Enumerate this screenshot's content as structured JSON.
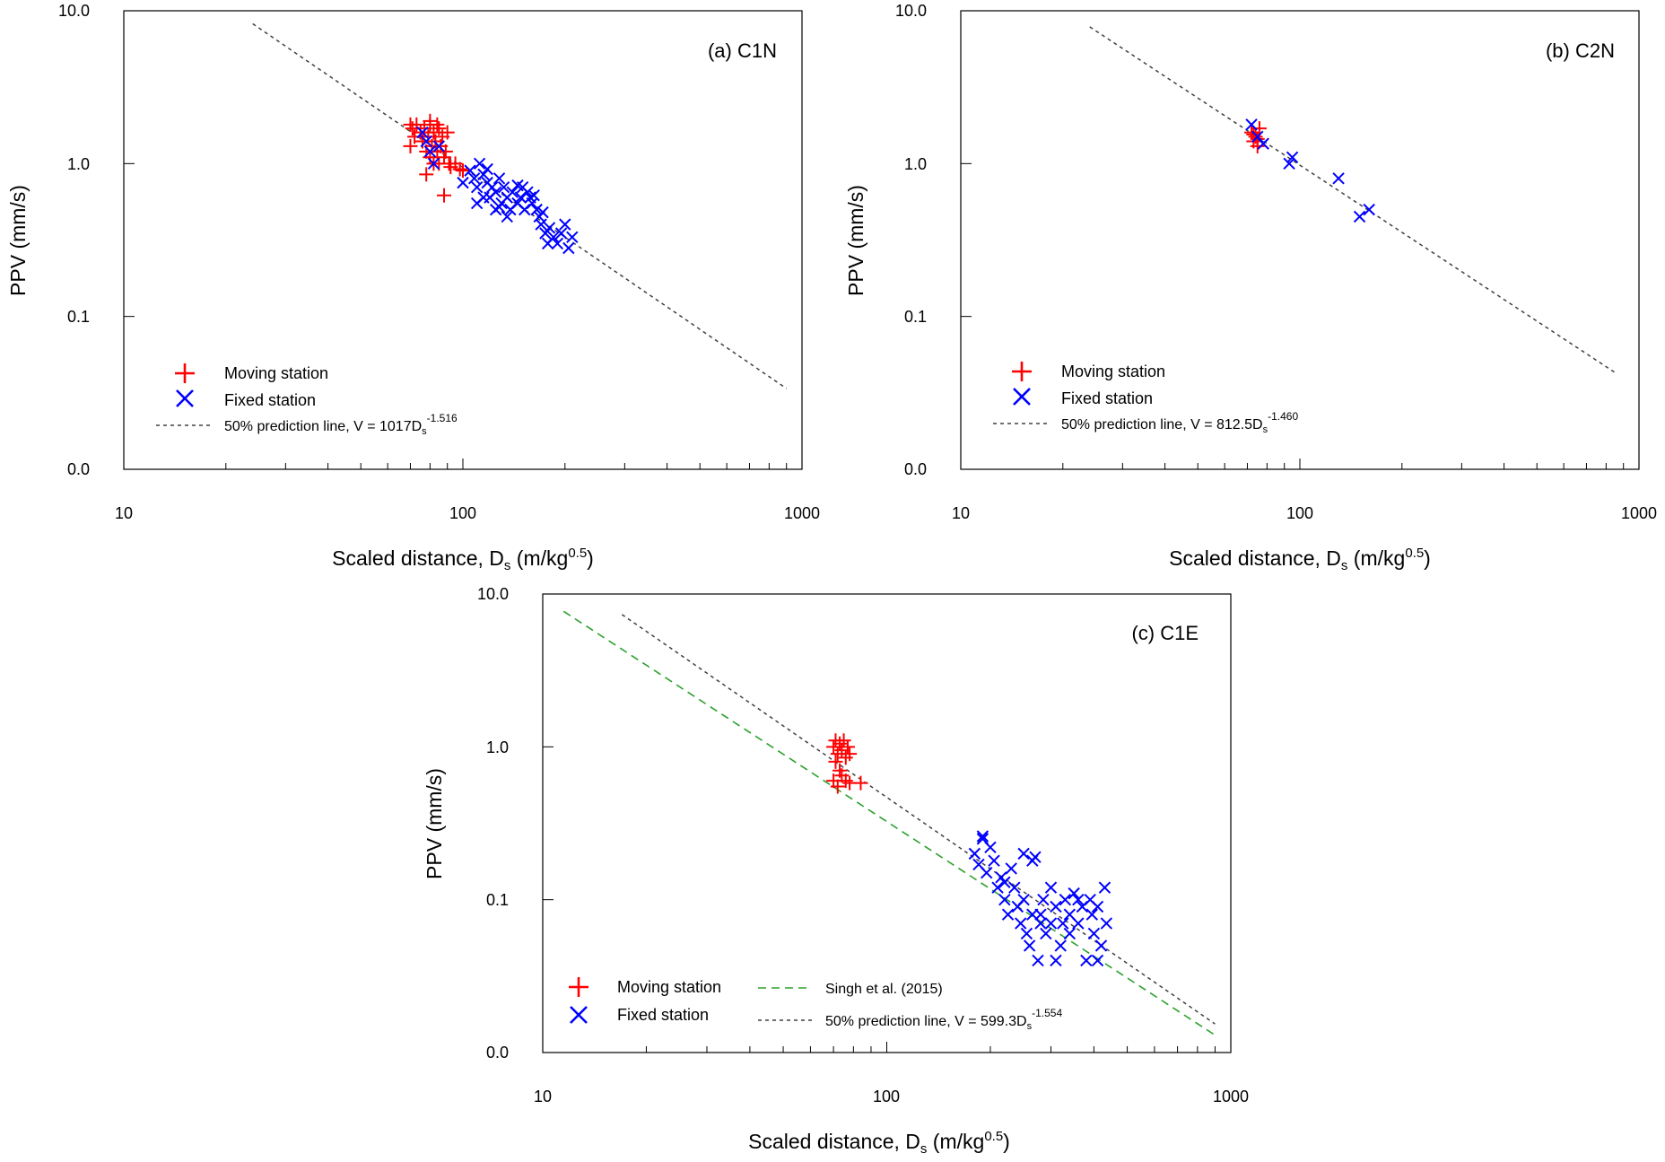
{
  "figure": {
    "panels_count": 3
  },
  "chart_data": [
    {
      "type": "scatter",
      "id": "a",
      "title": "(a) C1N",
      "xlabel": "Scaled distance, Ds (m/kg^0.5)",
      "xlabel_parts": {
        "main": "Scaled distance, D",
        "sub": "s",
        "unit_open": " (m/kg",
        "sup": "0.5",
        "unit_close": ")"
      },
      "ylabel": "PPV (mm/s)",
      "xscale": "log",
      "yscale": "log",
      "xlim": [
        10,
        1000
      ],
      "ylim": [
        0.01,
        10
      ],
      "x_ticks": [
        10,
        100,
        1000
      ],
      "x_tick_labels": [
        "10",
        "100",
        "1000"
      ],
      "y_ticks": [
        0.01,
        0.1,
        1,
        10
      ],
      "y_tick_labels": [
        "0.0",
        "0.1",
        "1.0",
        "10.0"
      ],
      "legend_position": "bottom-left",
      "legend": [
        {
          "name": "Moving station",
          "marker": "plus",
          "color": "#ff0000"
        },
        {
          "name": "Fixed station",
          "marker": "x",
          "color": "#0000ff"
        },
        {
          "name": "50% prediction line, V = 1017Ds^-1.516",
          "label_main": "50% prediction line, V = 1017D",
          "label_sub": "s",
          "label_sup": "-1.516",
          "marker": "dashed",
          "color": "#404040"
        }
      ],
      "series": [
        {
          "name": "Moving station",
          "marker": "plus",
          "color": "#ff0000",
          "points": [
            [
              70,
              1.8
            ],
            [
              71,
              1.7
            ],
            [
              72,
              1.5
            ],
            [
              70,
              1.3
            ],
            [
              73,
              1.8
            ],
            [
              75,
              1.6
            ],
            [
              76,
              1.4
            ],
            [
              77,
              1.7
            ],
            [
              78,
              1.2
            ],
            [
              79,
              1.5
            ],
            [
              80,
              1.8
            ],
            [
              80,
              1.1
            ],
            [
              81,
              1.3
            ],
            [
              82,
              1.6
            ],
            [
              82,
              1.0
            ],
            [
              83,
              1.4
            ],
            [
              84,
              1.2
            ],
            [
              85,
              1.7
            ],
            [
              85,
              1.0
            ],
            [
              86,
              1.3
            ],
            [
              87,
              1.5
            ],
            [
              88,
              1.1
            ],
            [
              89,
              1.2
            ],
            [
              90,
              1.6
            ],
            [
              91,
              1.0
            ],
            [
              92,
              0.95
            ],
            [
              95,
              1.0
            ],
            [
              98,
              0.92
            ],
            [
              100,
              0.9
            ],
            [
              78,
              0.85
            ],
            [
              88,
              0.62
            ],
            [
              80,
              1.9
            ],
            [
              84,
              1.8
            ]
          ]
        },
        {
          "name": "Fixed station",
          "marker": "x",
          "color": "#0000ff",
          "points": [
            [
              76,
              1.6
            ],
            [
              78,
              1.4
            ],
            [
              80,
              1.2
            ],
            [
              82,
              1.0
            ],
            [
              85,
              1.3
            ],
            [
              105,
              0.9
            ],
            [
              108,
              0.8
            ],
            [
              110,
              0.7
            ],
            [
              112,
              1.0
            ],
            [
              115,
              0.85
            ],
            [
              118,
              0.75
            ],
            [
              120,
              0.6
            ],
            [
              122,
              0.7
            ],
            [
              125,
              0.65
            ],
            [
              128,
              0.8
            ],
            [
              130,
              0.55
            ],
            [
              132,
              0.7
            ],
            [
              135,
              0.6
            ],
            [
              138,
              0.5
            ],
            [
              140,
              0.65
            ],
            [
              145,
              0.55
            ],
            [
              148,
              0.6
            ],
            [
              150,
              0.7
            ],
            [
              152,
              0.5
            ],
            [
              155,
              0.65
            ],
            [
              158,
              0.6
            ],
            [
              160,
              0.55
            ],
            [
              165,
              0.5
            ],
            [
              168,
              0.45
            ],
            [
              170,
              0.4
            ],
            [
              175,
              0.35
            ],
            [
              178,
              0.3
            ],
            [
              180,
              0.38
            ],
            [
              185,
              0.33
            ],
            [
              190,
              0.3
            ],
            [
              195,
              0.35
            ],
            [
              200,
              0.4
            ],
            [
              205,
              0.28
            ],
            [
              210,
              0.33
            ],
            [
              115,
              0.6
            ],
            [
              110,
              0.55
            ],
            [
              125,
              0.5
            ],
            [
              135,
              0.45
            ],
            [
              145,
              0.72
            ],
            [
              100,
              0.75
            ],
            [
              118,
              0.92
            ],
            [
              128,
              0.52
            ],
            [
              162,
              0.62
            ],
            [
              172,
              0.48
            ]
          ]
        }
      ],
      "fit_line": {
        "name": "50% prediction line",
        "coef": 1017,
        "exponent": -1.516,
        "x_range": [
          24,
          900
        ]
      }
    },
    {
      "type": "scatter",
      "id": "b",
      "title": "(b) C2N",
      "xlabel": "Scaled distance, Ds (m/kg^0.5)",
      "xlabel_parts": {
        "main": "Scaled distance, D",
        "sub": "s",
        "unit_open": " (m/kg",
        "sup": "0.5",
        "unit_close": ")"
      },
      "ylabel": "PPV (mm/s)",
      "xscale": "log",
      "yscale": "log",
      "xlim": [
        10,
        1000
      ],
      "ylim": [
        0.01,
        10
      ],
      "x_ticks": [
        10,
        100,
        1000
      ],
      "x_tick_labels": [
        "10",
        "100",
        "1000"
      ],
      "y_ticks": [
        0.01,
        0.1,
        1,
        10
      ],
      "y_tick_labels": [
        "0.0",
        "0.1",
        "1.0",
        "10.0"
      ],
      "legend_position": "bottom-left",
      "legend": [
        {
          "name": "Moving station",
          "marker": "plus",
          "color": "#ff0000"
        },
        {
          "name": "Fixed station",
          "marker": "x",
          "color": "#0000ff"
        },
        {
          "name": "50% prediction line, V = 812.5Ds^-1.460",
          "label_main": "50% prediction line, V = 812.5D",
          "label_sub": "s",
          "label_sup": "-1.460",
          "marker": "dashed",
          "color": "#404040"
        }
      ],
      "series": [
        {
          "name": "Moving station",
          "marker": "plus",
          "color": "#ff0000",
          "points": [
            [
              72,
              1.6
            ],
            [
              73,
              1.4
            ],
            [
              74,
              1.5
            ],
            [
              75,
              1.3
            ],
            [
              76,
              1.7
            ],
            [
              73,
              1.55
            ],
            [
              75,
              1.45
            ]
          ]
        },
        {
          "name": "Fixed station",
          "marker": "x",
          "color": "#0000ff",
          "points": [
            [
              72,
              1.8
            ],
            [
              75,
              1.5
            ],
            [
              78,
              1.35
            ],
            [
              93,
              1.0
            ],
            [
              95,
              1.1
            ],
            [
              130,
              0.8
            ],
            [
              150,
              0.45
            ],
            [
              160,
              0.5
            ]
          ]
        }
      ],
      "fit_line": {
        "name": "50% prediction line",
        "coef": 812.5,
        "exponent": -1.46,
        "x_range": [
          24,
          850
        ]
      }
    },
    {
      "type": "scatter",
      "id": "c",
      "title": "(c) C1E",
      "xlabel": "Scaled distance, Ds (m/kg^0.5)",
      "xlabel_parts": {
        "main": "Scaled distance, D",
        "sub": "s",
        "unit_open": " (m/kg",
        "sup": "0.5",
        "unit_close": ")"
      },
      "ylabel": "PPV (mm/s)",
      "xscale": "log",
      "yscale": "log",
      "xlim": [
        10,
        1000
      ],
      "ylim": [
        0.01,
        10
      ],
      "x_ticks": [
        10,
        100,
        1000
      ],
      "x_tick_labels": [
        "10",
        "100",
        "1000"
      ],
      "y_ticks": [
        0.01,
        0.1,
        1,
        10
      ],
      "y_tick_labels": [
        "0.0",
        "0.1",
        "1.0",
        "10.0"
      ],
      "legend_position": "bottom",
      "legend": [
        {
          "name": "Moving station",
          "marker": "plus",
          "color": "#ff0000"
        },
        {
          "name": "Fixed station",
          "marker": "x",
          "color": "#0000ff"
        },
        {
          "name": "Singh et al. (2015)",
          "marker": "dashed",
          "color": "#2ca02c"
        },
        {
          "name": "50% prediction line, V = 599.3Ds^-1.554",
          "label_main": "50% prediction line, V = 599.3D",
          "label_sub": "s",
          "label_sup": "-1.554",
          "marker": "dashed",
          "color": "#404040"
        }
      ],
      "series": [
        {
          "name": "Moving station",
          "marker": "plus",
          "color": "#ff0000",
          "points": [
            [
              70,
              1.0
            ],
            [
              71,
              1.1
            ],
            [
              72,
              0.9
            ],
            [
              73,
              1.05
            ],
            [
              74,
              0.95
            ],
            [
              75,
              1.1
            ],
            [
              76,
              0.85
            ],
            [
              77,
              1.0
            ],
            [
              70,
              0.6
            ],
            [
              72,
              0.55
            ],
            [
              74,
              0.65
            ],
            [
              76,
              0.6
            ],
            [
              78,
              0.58
            ],
            [
              71,
              0.8
            ],
            [
              78,
              0.9
            ],
            [
              73,
              0.7
            ],
            [
              84,
              0.58
            ]
          ]
        },
        {
          "name": "Fixed station",
          "marker": "x",
          "color": "#0000ff",
          "points": [
            [
              180,
              0.2
            ],
            [
              185,
              0.17
            ],
            [
              190,
              0.25
            ],
            [
              195,
              0.15
            ],
            [
              200,
              0.22
            ],
            [
              205,
              0.18
            ],
            [
              210,
              0.12
            ],
            [
              215,
              0.14
            ],
            [
              220,
              0.1
            ],
            [
              225,
              0.08
            ],
            [
              230,
              0.16
            ],
            [
              235,
              0.12
            ],
            [
              240,
              0.09
            ],
            [
              245,
              0.07
            ],
            [
              250,
              0.2
            ],
            [
              255,
              0.06
            ],
            [
              260,
              0.05
            ],
            [
              265,
              0.08
            ],
            [
              270,
              0.19
            ],
            [
              275,
              0.04
            ],
            [
              280,
              0.07
            ],
            [
              285,
              0.1
            ],
            [
              290,
              0.06
            ],
            [
              300,
              0.12
            ],
            [
              310,
              0.09
            ],
            [
              320,
              0.05
            ],
            [
              330,
              0.1
            ],
            [
              340,
              0.08
            ],
            [
              350,
              0.11
            ],
            [
              360,
              0.07
            ],
            [
              370,
              0.09
            ],
            [
              380,
              0.04
            ],
            [
              390,
              0.1
            ],
            [
              400,
              0.06
            ],
            [
              410,
              0.09
            ],
            [
              420,
              0.05
            ],
            [
              430,
              0.12
            ],
            [
              300,
              0.07
            ],
            [
              340,
              0.06
            ],
            [
              360,
              0.1
            ],
            [
              220,
              0.13
            ],
            [
              250,
              0.1
            ],
            [
              280,
              0.08
            ],
            [
              310,
              0.04
            ],
            [
              410,
              0.04
            ],
            [
              190,
              0.26
            ],
            [
              265,
              0.18
            ],
            [
              325,
              0.07
            ],
            [
              395,
              0.08
            ],
            [
              435,
              0.07
            ]
          ]
        }
      ],
      "fit_line": {
        "name": "50% prediction line",
        "coef": 599.3,
        "exponent": -1.554,
        "x_range": [
          17,
          900
        ]
      },
      "reference_line": {
        "name": "Singh et al. (2015)",
        "x1": 11.5,
        "y1": 7.7,
        "x2": 900,
        "y2": 0.013
      }
    }
  ]
}
